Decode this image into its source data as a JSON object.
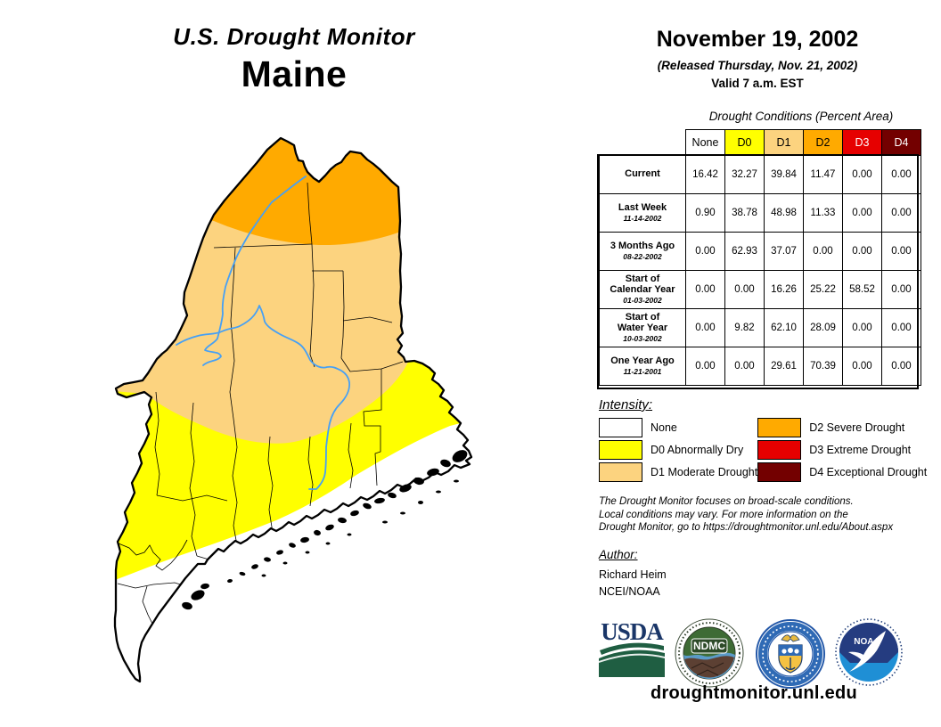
{
  "title": {
    "line1": "U.S. Drought Monitor",
    "line2": "Maine"
  },
  "date_block": {
    "date": "November 19, 2002",
    "released": "(Released Thursday, Nov. 21, 2002)",
    "valid": "Valid 7 a.m. EST"
  },
  "chart_data": {
    "type": "table",
    "title": "Drought Conditions (Percent Area)",
    "categories": [
      "None",
      "D0",
      "D1",
      "D2",
      "D3",
      "D4"
    ],
    "series": [
      {
        "name": "Current",
        "values": [
          16.42,
          32.27,
          39.84,
          11.47,
          0.0,
          0.0
        ]
      },
      {
        "name": "Last Week 11-14-2002",
        "values": [
          0.9,
          38.78,
          48.98,
          11.33,
          0.0,
          0.0
        ]
      },
      {
        "name": "3 Months Ago 08-22-2002",
        "values": [
          0.0,
          62.93,
          37.07,
          0.0,
          0.0,
          0.0
        ]
      },
      {
        "name": "Start of Calendar Year 01-03-2002",
        "values": [
          0.0,
          0.0,
          16.26,
          25.22,
          58.52,
          0.0
        ]
      },
      {
        "name": "Start of Water Year 10-03-2002",
        "values": [
          0.0,
          9.82,
          62.1,
          28.09,
          0.0,
          0.0
        ]
      },
      {
        "name": "One Year Ago 11-21-2001",
        "values": [
          0.0,
          0.0,
          29.61,
          70.39,
          0.0,
          0.0
        ]
      }
    ]
  },
  "table": {
    "caption": "Drought Conditions (Percent Area)",
    "columns": [
      {
        "label": "None",
        "color": "#FFFFFF",
        "text": "#000000"
      },
      {
        "label": "D0",
        "color": "#FFFF00",
        "text": "#000000"
      },
      {
        "label": "D1",
        "color": "#FCD37F",
        "text": "#000000"
      },
      {
        "label": "D2",
        "color": "#FFAA00",
        "text": "#000000"
      },
      {
        "label": "D3",
        "color": "#E60000",
        "text": "#FFFFFF"
      },
      {
        "label": "D4",
        "color": "#730000",
        "text": "#FFFFFF"
      }
    ],
    "rows": [
      {
        "label_lines": [
          "Current"
        ],
        "date": "",
        "values": [
          "16.42",
          "32.27",
          "39.84",
          "11.47",
          "0.00",
          "0.00"
        ]
      },
      {
        "label_lines": [
          "Last Week"
        ],
        "date": "11-14-2002",
        "values": [
          "0.90",
          "38.78",
          "48.98",
          "11.33",
          "0.00",
          "0.00"
        ]
      },
      {
        "label_lines": [
          "3 Months Ago"
        ],
        "date": "08-22-2002",
        "values": [
          "0.00",
          "62.93",
          "37.07",
          "0.00",
          "0.00",
          "0.00"
        ]
      },
      {
        "label_lines": [
          "Start of",
          "Calendar Year"
        ],
        "date": "01-03-2002",
        "values": [
          "0.00",
          "0.00",
          "16.26",
          "25.22",
          "58.52",
          "0.00"
        ]
      },
      {
        "label_lines": [
          "Start of",
          "Water Year"
        ],
        "date": "10-03-2002",
        "values": [
          "0.00",
          "9.82",
          "62.10",
          "28.09",
          "0.00",
          "0.00"
        ]
      },
      {
        "label_lines": [
          "One Year Ago"
        ],
        "date": "11-21-2001",
        "values": [
          "0.00",
          "0.00",
          "29.61",
          "70.39",
          "0.00",
          "0.00"
        ]
      }
    ]
  },
  "legend": {
    "heading": "Intensity:",
    "items": [
      {
        "label": "None",
        "color": "#FFFFFF"
      },
      {
        "label": "D0 Abnormally Dry",
        "color": "#FFFF00"
      },
      {
        "label": "D1 Moderate Drought",
        "color": "#FCD37F"
      },
      {
        "label": "D2 Severe Drought",
        "color": "#FFAA00"
      },
      {
        "label": "D3 Extreme Drought",
        "color": "#E60000"
      },
      {
        "label": "D4 Exceptional Drought",
        "color": "#730000"
      }
    ]
  },
  "disclaimer_lines": [
    "The Drought Monitor focuses on broad-scale conditions.",
    "Local conditions may vary. For more information on the",
    "Drought Monitor, go to https://droughtmonitor.unl.edu/About.aspx"
  ],
  "author": {
    "heading": "Author:",
    "name": "Richard Heim",
    "org": "NCEI/NOAA"
  },
  "logos": {
    "usda": "USDA",
    "ndmc": "NDMC",
    "noaa": "NOAA"
  },
  "footer": {
    "url": "droughtmonitor.unl.edu"
  },
  "map": {
    "state": "Maine",
    "regions": [
      {
        "code": "D2",
        "area": "far north"
      },
      {
        "code": "D1",
        "area": "north-central"
      },
      {
        "code": "D0",
        "area": "central band"
      },
      {
        "code": "None",
        "area": "southern coast"
      }
    ],
    "colors": {
      "none": "#FFFFFF",
      "d0": "#FFFF00",
      "d1": "#FCD37F",
      "d2": "#FFAA00",
      "river": "#46A0F5",
      "border": "#000000"
    }
  }
}
